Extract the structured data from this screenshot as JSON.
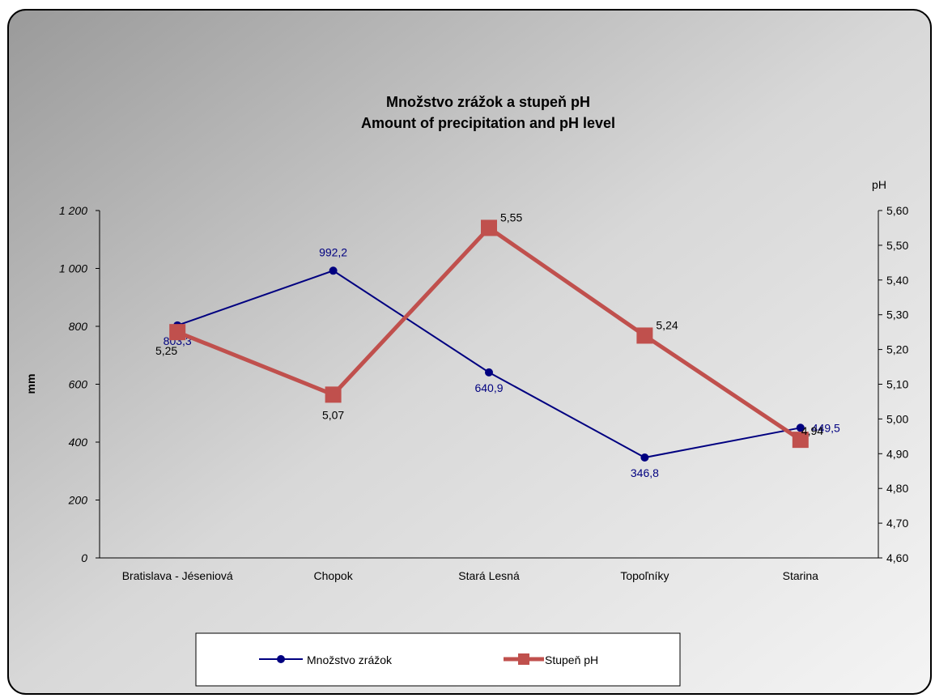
{
  "chart_data": {
    "type": "line",
    "title_lines": [
      "Množstvo zrážok a stupeň pH",
      "Amount of precipitation and pH level"
    ],
    "categories": [
      "Bratislava - Jéseniová",
      "Chopok",
      "Stará Lesná",
      "Topoľníky",
      "Starina"
    ],
    "y_left": {
      "label": "mm",
      "range": [
        0,
        1200
      ],
      "ticks": [
        0,
        200,
        400,
        600,
        800,
        1000,
        1200
      ],
      "tick_labels": [
        "0",
        "200",
        "400",
        "600",
        "800",
        "1 000",
        "1 200"
      ]
    },
    "y_right": {
      "label": "pH",
      "range": [
        4.6,
        5.6
      ],
      "ticks": [
        4.6,
        4.7,
        4.8,
        4.9,
        5.0,
        5.1,
        5.2,
        5.3,
        5.4,
        5.5,
        5.6
      ],
      "tick_labels": [
        "4,60",
        "4,70",
        "4,80",
        "4,90",
        "5,00",
        "5,10",
        "5,20",
        "5,30",
        "5,40",
        "5,50",
        "5,60"
      ]
    },
    "series": [
      {
        "name": "Množstvo zrážok",
        "axis": "left",
        "color": "#000080",
        "marker": "circle",
        "values": [
          803.3,
          992.2,
          640.9,
          346.8,
          449.5
        ],
        "data_labels": [
          "803,3",
          "992,2",
          "640,9",
          "346,8",
          "449,5"
        ],
        "label_positions": [
          "below",
          "above",
          "below",
          "below",
          "right"
        ]
      },
      {
        "name": "Stupeň pH",
        "axis": "right",
        "color": "#c0504d",
        "marker": "square",
        "values": [
          5.25,
          5.07,
          5.55,
          5.24,
          4.94
        ],
        "data_labels": [
          "5,25",
          "5,07",
          "5,55",
          "5,24",
          "4,94"
        ],
        "label_positions": [
          "below-left",
          "below",
          "right",
          "right",
          "right-up"
        ]
      }
    ],
    "legend": {
      "position": "bottom"
    },
    "grid": false
  }
}
